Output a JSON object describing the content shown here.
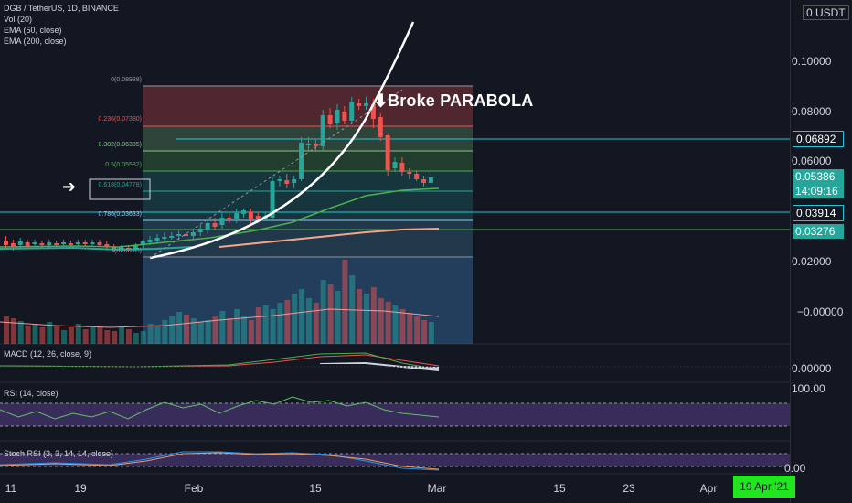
{
  "header": {
    "symbol": "DGB / TetherUS, 1D, BINANCE",
    "indicators": [
      "Vol (20)",
      "EMA (50, close)",
      "EMA (200, close)"
    ],
    "currency": "0 USDT"
  },
  "price_axis": {
    "labels": [
      "0.10000",
      "0.08000",
      "0.06000",
      "0.02000",
      "−0.00000"
    ],
    "tags": [
      {
        "text": "0.06892",
        "bg": "#131722",
        "border": "#26c6da",
        "color": "#ffffff"
      },
      {
        "text": "0.05386",
        "bg": "#26a69a",
        "color": "#ffffff"
      },
      {
        "text": "14:09:16",
        "bg": "#26a69a",
        "color": "#ffffff"
      },
      {
        "text": "0.03914",
        "bg": "#131722",
        "border": "#26c6da",
        "color": "#ffffff"
      },
      {
        "text": "0.03276",
        "bg": "#26a69a",
        "color": "#ffffff"
      }
    ]
  },
  "fib": {
    "levels": [
      {
        "label": "0(0.08988)",
        "color": "#9598a1"
      },
      {
        "label": "0.236(0.07380)",
        "color": "#ef5350"
      },
      {
        "label": "0.382(0.06385)",
        "color": "#81c784"
      },
      {
        "label": "0.5(0.05582)",
        "color": "#4caf50"
      },
      {
        "label": "0.618(0.04778)",
        "color": "#26a69a"
      },
      {
        "label": "0.786(0.03633)",
        "color": "#90caf9"
      },
      {
        "label": "1(0.02175)",
        "color": "#9598a1"
      }
    ]
  },
  "annotation": {
    "text": "Broke PARABOLA",
    "down_arrow": "⬇",
    "right_arrow": "➔"
  },
  "macd": {
    "title": "MACD (12, 26, close, 9)",
    "value": "0.00000"
  },
  "rsi": {
    "title": "RSI (14, close)",
    "value": "100.00"
  },
  "stoch": {
    "title": "Stoch RSI (3, 3, 14, 14, close)",
    "value": "0.00"
  },
  "time_axis": {
    "labels": [
      "11",
      "19",
      "Feb",
      "15",
      "Mar",
      "15",
      "23",
      "Apr"
    ],
    "highlight": "19 Apr '21"
  },
  "colors": {
    "up": "#26a69a",
    "down": "#ef5350",
    "bg": "#131722",
    "ema50": "#4caf50",
    "ema200": "#f7a58a"
  }
}
